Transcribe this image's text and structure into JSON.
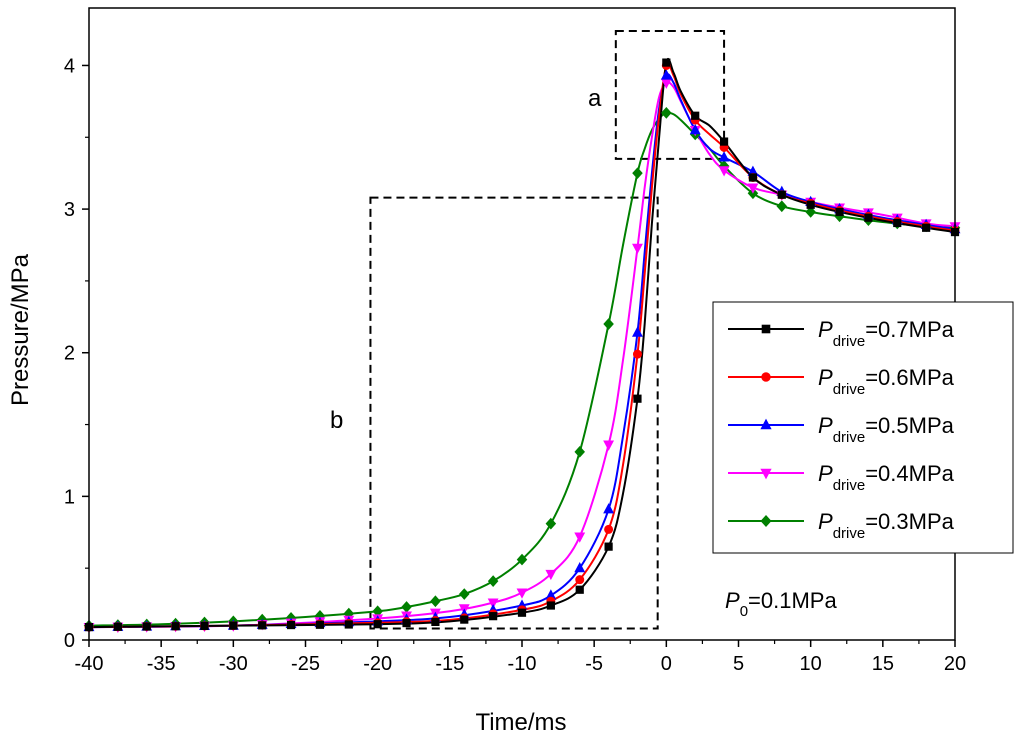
{
  "chart_data": {
    "type": "line",
    "xlabel": "Time/ms",
    "ylabel": "Pressure/MPa",
    "xlim": [
      -40,
      20
    ],
    "ylim": [
      0,
      4.4
    ],
    "xticks": [
      -40,
      -35,
      -30,
      -25,
      -20,
      -15,
      -10,
      -5,
      0,
      5,
      10,
      15,
      20
    ],
    "yticks": [
      0,
      1,
      2,
      3,
      4
    ],
    "xtick_labels": [
      "-40",
      "-35",
      "-30",
      "-25",
      "-20",
      "-15",
      "-10",
      "-5",
      "0",
      "5",
      "10",
      "15",
      "20"
    ],
    "ytick_labels": [
      "0",
      "1",
      "2",
      "3",
      "4"
    ],
    "legend_position": "right",
    "series": [
      {
        "name_main": "P",
        "name_sub": "drive",
        "name_value": "=0.7MPa",
        "color": "#000000",
        "marker": "square",
        "x": [
          -40,
          -30,
          -20,
          -15,
          -10,
          -8,
          -6,
          -4,
          -3,
          -2,
          -1.5,
          -1,
          -0.5,
          0,
          0.5,
          1,
          2,
          3,
          4,
          6,
          8,
          10,
          12,
          15,
          18,
          20
        ],
        "y": [
          0.09,
          0.1,
          0.11,
          0.13,
          0.19,
          0.24,
          0.35,
          0.65,
          1.02,
          1.68,
          2.2,
          2.9,
          3.5,
          4.02,
          3.95,
          3.82,
          3.65,
          3.58,
          3.47,
          3.22,
          3.1,
          3.03,
          2.98,
          2.92,
          2.87,
          2.84
        ],
        "marker_x": [
          -40,
          -38,
          -36,
          -34,
          -32,
          -30,
          -28,
          -26,
          -24,
          -22,
          -20,
          -18,
          -16,
          -14,
          -12,
          -10,
          -8,
          -6,
          -4,
          -2,
          0,
          2,
          4,
          6,
          8,
          10,
          12,
          14,
          16,
          18,
          20
        ]
      },
      {
        "name_main": "P",
        "name_sub": "drive",
        "name_value": "=0.6MPa",
        "color": "#ff0000",
        "marker": "circle",
        "x": [
          -40,
          -30,
          -20,
          -15,
          -10,
          -8,
          -6,
          -4,
          -3,
          -2,
          -1.5,
          -1,
          -0.5,
          0,
          0.5,
          1,
          2,
          3,
          4,
          6,
          8,
          10,
          12,
          15,
          18,
          20
        ],
        "y": [
          0.09,
          0.1,
          0.12,
          0.14,
          0.21,
          0.27,
          0.42,
          0.77,
          1.22,
          1.99,
          2.55,
          3.15,
          3.65,
          4.0,
          3.93,
          3.8,
          3.62,
          3.52,
          3.43,
          3.22,
          3.1,
          3.04,
          2.99,
          2.93,
          2.88,
          2.85
        ],
        "marker_x": [
          -40,
          -38,
          -36,
          -34,
          -32,
          -30,
          -28,
          -26,
          -24,
          -22,
          -20,
          -18,
          -16,
          -14,
          -12,
          -10,
          -8,
          -6,
          -4,
          -2,
          0,
          2,
          4,
          6,
          8,
          10,
          12,
          14,
          16,
          18,
          20
        ]
      },
      {
        "name_main": "P",
        "name_sub": "drive",
        "name_value": "=0.5MPa",
        "color": "#0000ff",
        "marker": "triangle-up",
        "x": [
          -40,
          -30,
          -20,
          -15,
          -10,
          -8,
          -6,
          -4,
          -3,
          -2,
          -1.5,
          -1,
          -0.5,
          0,
          0.5,
          1,
          2,
          3,
          4,
          6,
          8,
          10,
          12,
          15,
          18,
          20
        ],
        "y": [
          0.09,
          0.1,
          0.13,
          0.16,
          0.24,
          0.31,
          0.5,
          0.91,
          1.42,
          2.14,
          2.7,
          3.25,
          3.7,
          3.93,
          3.88,
          3.76,
          3.55,
          3.42,
          3.36,
          3.26,
          3.12,
          3.05,
          3.0,
          2.94,
          2.89,
          2.86
        ],
        "marker_x": [
          -40,
          -38,
          -36,
          -34,
          -32,
          -30,
          -28,
          -26,
          -24,
          -22,
          -20,
          -18,
          -16,
          -14,
          -12,
          -10,
          -8,
          -6,
          -4,
          -2,
          0,
          2,
          4,
          6,
          8,
          10,
          12,
          14,
          16,
          18,
          20
        ]
      },
      {
        "name_main": "P",
        "name_sub": "drive",
        "name_value": "=0.4MPa",
        "color": "#ff00ff",
        "marker": "triangle-down",
        "x": [
          -40,
          -30,
          -20,
          -15,
          -12,
          -10,
          -8,
          -6,
          -4,
          -3,
          -2,
          -1.5,
          -1,
          -0.5,
          0,
          0.5,
          1,
          2,
          3,
          4,
          6,
          8,
          10,
          12,
          15,
          18,
          20
        ],
        "y": [
          0.09,
          0.1,
          0.15,
          0.2,
          0.26,
          0.33,
          0.46,
          0.72,
          1.36,
          1.95,
          2.73,
          3.15,
          3.5,
          3.78,
          3.88,
          3.85,
          3.75,
          3.55,
          3.38,
          3.27,
          3.15,
          3.1,
          3.05,
          3.01,
          2.96,
          2.9,
          2.88
        ],
        "marker_x": [
          -40,
          -38,
          -36,
          -34,
          -32,
          -30,
          -28,
          -26,
          -24,
          -22,
          -20,
          -18,
          -16,
          -14,
          -12,
          -10,
          -8,
          -6,
          -4,
          -2,
          0,
          2,
          4,
          6,
          8,
          10,
          12,
          14,
          16,
          18,
          20
        ]
      },
      {
        "name_main": "P",
        "name_sub": "drive",
        "name_value": "=0.3MPa",
        "color": "#008000",
        "marker": "diamond",
        "x": [
          -40,
          -35,
          -30,
          -25,
          -20,
          -18,
          -16,
          -14,
          -12,
          -10,
          -8,
          -6,
          -4,
          -3,
          -2,
          -1.5,
          -1,
          -0.5,
          0,
          0.5,
          1,
          2,
          3,
          4,
          6,
          8,
          10,
          12,
          15,
          18,
          20
        ],
        "y": [
          0.1,
          0.11,
          0.13,
          0.16,
          0.2,
          0.23,
          0.27,
          0.32,
          0.41,
          0.56,
          0.81,
          1.31,
          2.2,
          2.75,
          3.25,
          3.42,
          3.55,
          3.63,
          3.67,
          3.66,
          3.62,
          3.52,
          3.42,
          3.3,
          3.11,
          3.02,
          2.98,
          2.95,
          2.91,
          2.88,
          2.87
        ],
        "marker_x": [
          -40,
          -38,
          -36,
          -34,
          -32,
          -30,
          -28,
          -26,
          -24,
          -22,
          -20,
          -18,
          -16,
          -14,
          -12,
          -10,
          -8,
          -6,
          -4,
          -2,
          0,
          2,
          4,
          6,
          8,
          10,
          12,
          14,
          16,
          18,
          20
        ]
      }
    ],
    "annotations": {
      "box_a": {
        "label": "a",
        "x0": -3.5,
        "x1": 4,
        "y0": 3.35,
        "y1": 4.24
      },
      "box_b": {
        "label": "b",
        "x0": -20.5,
        "x1": -0.6,
        "y0": 0.08,
        "y1": 3.08
      },
      "p0_main": "P",
      "p0_sub": "0",
      "p0_value": "=0.1MPa"
    }
  }
}
